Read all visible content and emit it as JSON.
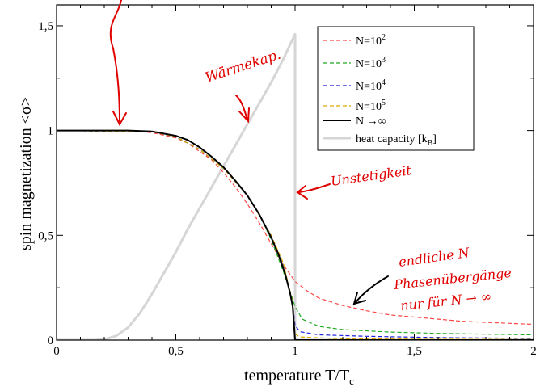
{
  "chart_data": {
    "type": "line",
    "xlabel": "temperature T/T",
    "xlabel_sub": "c",
    "ylabel": "spin magnetization <σ>",
    "xlim": [
      0,
      2
    ],
    "ylim": [
      0,
      1.6
    ],
    "x_ticks": [
      {
        "value": 0,
        "label": "0"
      },
      {
        "value": 0.5,
        "label": "0,5"
      },
      {
        "value": 1,
        "label": "1"
      },
      {
        "value": 1.5,
        "label": "1,5"
      },
      {
        "value": 2,
        "label": "2"
      }
    ],
    "y_ticks": [
      {
        "value": 0,
        "label": "0"
      },
      {
        "value": 0.5,
        "label": "0,5"
      },
      {
        "value": 1,
        "label": "1"
      },
      {
        "value": 1.5,
        "label": "1,5"
      }
    ],
    "x_minor_ticks": [
      0.1,
      0.2,
      0.3,
      0.4,
      0.6,
      0.7,
      0.8,
      0.9,
      1.1,
      1.2,
      1.3,
      1.4,
      1.6,
      1.7,
      1.8,
      1.9
    ],
    "y_minor_ticks": [
      0.25,
      0.75,
      1.25
    ],
    "legend_position": "top-right",
    "series": [
      {
        "name": "N=10",
        "exp": "2",
        "color": "#ff4444",
        "dash": "5,3",
        "width": 1.2,
        "points": [
          [
            0,
            1
          ],
          [
            0.3,
            1
          ],
          [
            0.4,
            0.99
          ],
          [
            0.5,
            0.965
          ],
          [
            0.55,
            0.94
          ],
          [
            0.6,
            0.9
          ],
          [
            0.65,
            0.86
          ],
          [
            0.7,
            0.8
          ],
          [
            0.75,
            0.73
          ],
          [
            0.8,
            0.65
          ],
          [
            0.85,
            0.56
          ],
          [
            0.9,
            0.46
          ],
          [
            0.95,
            0.36
          ],
          [
            1.0,
            0.28
          ],
          [
            1.05,
            0.235
          ],
          [
            1.1,
            0.2
          ],
          [
            1.2,
            0.165
          ],
          [
            1.3,
            0.14
          ],
          [
            1.4,
            0.12
          ],
          [
            1.5,
            0.11
          ],
          [
            1.6,
            0.1
          ],
          [
            1.7,
            0.09
          ],
          [
            1.8,
            0.085
          ],
          [
            1.9,
            0.08
          ],
          [
            2.0,
            0.075
          ]
        ]
      },
      {
        "name": "N=10",
        "exp": "3",
        "color": "#22aa22",
        "dash": "5,3",
        "width": 1.2,
        "points": [
          [
            0,
            1
          ],
          [
            0.4,
            0.995
          ],
          [
            0.5,
            0.97
          ],
          [
            0.6,
            0.91
          ],
          [
            0.7,
            0.82
          ],
          [
            0.8,
            0.69
          ],
          [
            0.85,
            0.6
          ],
          [
            0.9,
            0.48
          ],
          [
            0.95,
            0.33
          ],
          [
            0.98,
            0.23
          ],
          [
            1.0,
            0.16
          ],
          [
            1.03,
            0.1
          ],
          [
            1.1,
            0.065
          ],
          [
            1.2,
            0.05
          ],
          [
            1.4,
            0.038
          ],
          [
            1.6,
            0.032
          ],
          [
            1.8,
            0.028
          ],
          [
            2.0,
            0.025
          ]
        ]
      },
      {
        "name": "N=10",
        "exp": "4",
        "color": "#2222dd",
        "dash": "5,3",
        "width": 1.2,
        "points": [
          [
            0,
            1
          ],
          [
            0.4,
            0.995
          ],
          [
            0.5,
            0.97
          ],
          [
            0.6,
            0.91
          ],
          [
            0.7,
            0.82
          ],
          [
            0.8,
            0.69
          ],
          [
            0.9,
            0.5
          ],
          [
            0.95,
            0.36
          ],
          [
            0.99,
            0.17
          ],
          [
            1.0,
            0.07
          ],
          [
            1.02,
            0.04
          ],
          [
            1.1,
            0.025
          ],
          [
            1.3,
            0.018
          ],
          [
            1.6,
            0.012
          ],
          [
            2.0,
            0.008
          ]
        ]
      },
      {
        "name": "N=10",
        "exp": "5",
        "color": "#ddaa00",
        "dash": "5,3",
        "width": 1.2,
        "points": [
          [
            0,
            1
          ],
          [
            0.4,
            0.995
          ],
          [
            0.5,
            0.97
          ],
          [
            0.6,
            0.91
          ],
          [
            0.7,
            0.82
          ],
          [
            0.8,
            0.69
          ],
          [
            0.9,
            0.5
          ],
          [
            0.95,
            0.37
          ],
          [
            0.99,
            0.18
          ],
          [
            1.0,
            0.03
          ],
          [
            1.02,
            0.015
          ],
          [
            1.2,
            0.006
          ],
          [
            1.6,
            0.004
          ],
          [
            2.0,
            0.003
          ]
        ]
      },
      {
        "name": "N →∞",
        "exp": "",
        "color": "#000000",
        "dash": "",
        "width": 2,
        "points": [
          [
            0,
            1
          ],
          [
            0.3,
            1
          ],
          [
            0.4,
            0.996
          ],
          [
            0.5,
            0.975
          ],
          [
            0.55,
            0.955
          ],
          [
            0.6,
            0.92
          ],
          [
            0.65,
            0.875
          ],
          [
            0.7,
            0.825
          ],
          [
            0.75,
            0.76
          ],
          [
            0.8,
            0.69
          ],
          [
            0.85,
            0.6
          ],
          [
            0.9,
            0.49
          ],
          [
            0.93,
            0.41
          ],
          [
            0.96,
            0.31
          ],
          [
            0.98,
            0.22
          ],
          [
            0.99,
            0.16
          ],
          [
            1.0,
            0
          ],
          [
            2.0,
            0
          ]
        ]
      },
      {
        "name": "heat capacity [k",
        "exp": "",
        "sub": "B",
        "color": "#d6d6d6",
        "dash": "",
        "width": 3,
        "points": [
          [
            0,
            0
          ],
          [
            0.15,
            0
          ],
          [
            0.2,
            0.003
          ],
          [
            0.25,
            0.02
          ],
          [
            0.3,
            0.06
          ],
          [
            0.35,
            0.13
          ],
          [
            0.4,
            0.22
          ],
          [
            0.45,
            0.32
          ],
          [
            0.5,
            0.42
          ],
          [
            0.55,
            0.53
          ],
          [
            0.6,
            0.63
          ],
          [
            0.65,
            0.73
          ],
          [
            0.7,
            0.83
          ],
          [
            0.75,
            0.93
          ],
          [
            0.8,
            1.03
          ],
          [
            0.85,
            1.13
          ],
          [
            0.9,
            1.23
          ],
          [
            0.95,
            1.34
          ],
          [
            1.0,
            1.46
          ],
          [
            1.0,
            0
          ],
          [
            2.0,
            0
          ]
        ]
      }
    ]
  },
  "annotations": {
    "waerme_label": "Wärmekap.",
    "unstetig_label": "Unstetigkeit",
    "endliche_label": "endliche N",
    "phasen_line1": "Phasenübergänge",
    "phasen_line2": "nur für N → ∞"
  },
  "colors": {
    "annotation_ink": "#e00000",
    "axis": "#000000",
    "background": "#ffffff"
  }
}
